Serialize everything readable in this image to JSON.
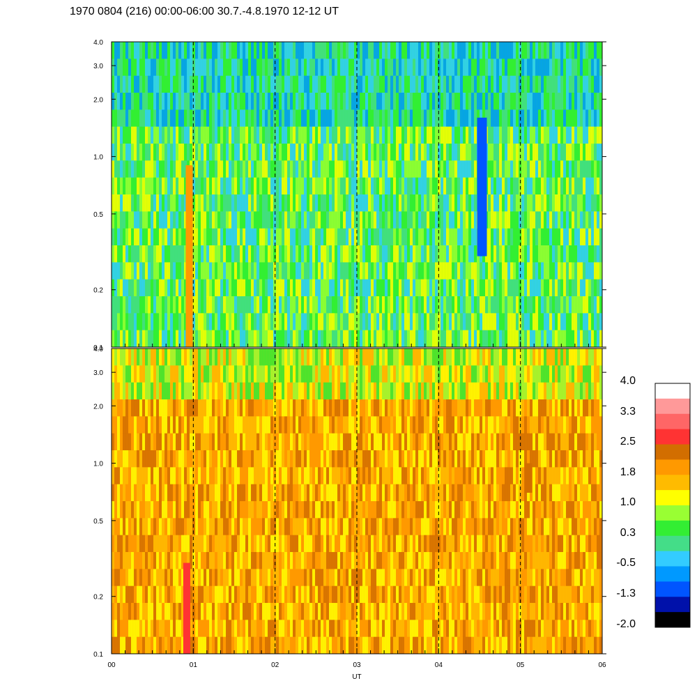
{
  "title": "1970 0804 (216) 00:00-06:00 30.7.-4.8.1970  12-12 UT",
  "chart_data": {
    "type": "heatmap",
    "x_axis": {
      "label": "UT",
      "ticks": [
        "00",
        "01",
        "02",
        "03",
        "04",
        "05",
        "06"
      ],
      "range": [
        0,
        6
      ],
      "day_boundaries": [
        1,
        2,
        3,
        4,
        5
      ]
    },
    "panels": [
      {
        "name": "upper",
        "y_scale": "log",
        "y_range": [
          0.1,
          4.0
        ],
        "y_ticks": [
          {
            "value": 0.1,
            "label": "0.1"
          },
          {
            "value": 0.2,
            "label": "0.2"
          },
          {
            "value": 0.5,
            "label": "0.5"
          },
          {
            "value": 1.0,
            "label": "1.0"
          },
          {
            "value": 2.0,
            "label": "2.0"
          },
          {
            "value": 3.0,
            "label": "3.0"
          },
          {
            "value": 4.0,
            "label": "4.0"
          }
        ],
        "dominant_levels": [
          "green",
          "yellow-green",
          "light green",
          "cyan"
        ],
        "features": [
          {
            "x": 0.95,
            "y_range": [
              0.1,
              0.9
            ],
            "level": "orange"
          },
          {
            "x": 4.53,
            "y_range": [
              0.3,
              1.6
            ],
            "level": "blue"
          }
        ]
      },
      {
        "name": "lower",
        "y_scale": "log",
        "y_range": [
          0.1,
          4.0
        ],
        "y_ticks": [
          {
            "value": 0.1,
            "label": "0.1"
          },
          {
            "value": 0.2,
            "label": "0.2"
          },
          {
            "value": 0.5,
            "label": "0.5"
          },
          {
            "value": 1.0,
            "label": "1.0"
          },
          {
            "value": 2.0,
            "label": "2.0"
          },
          {
            "value": 3.0,
            "label": "3.0"
          },
          {
            "value": 4.0,
            "label": "4.0"
          }
        ],
        "dominant_levels": [
          "orange",
          "amber",
          "yellow"
        ],
        "features": [
          {
            "x": 0.92,
            "y_range": [
              0.1,
              0.3
            ],
            "level": "red"
          },
          {
            "x": 5.1,
            "y_range": [
              0.7,
              1.0
            ],
            "level": "dark orange"
          }
        ]
      }
    ],
    "colorbar": {
      "labels": [
        "4.0",
        "3.3",
        "2.5",
        "1.8",
        "1.0",
        "0.3",
        "-0.5",
        "-1.3",
        "-2.0"
      ],
      "colors": [
        "#ffffff",
        "#ff9999",
        "#ff6666",
        "#ff3333",
        "#d26e00",
        "#ff9900",
        "#ffbb00",
        "#ffff00",
        "#99ff33",
        "#33ee33",
        "#44dd88",
        "#33ccff",
        "#0099ff",
        "#0055ff",
        "#0011aa",
        "#000000"
      ]
    }
  }
}
